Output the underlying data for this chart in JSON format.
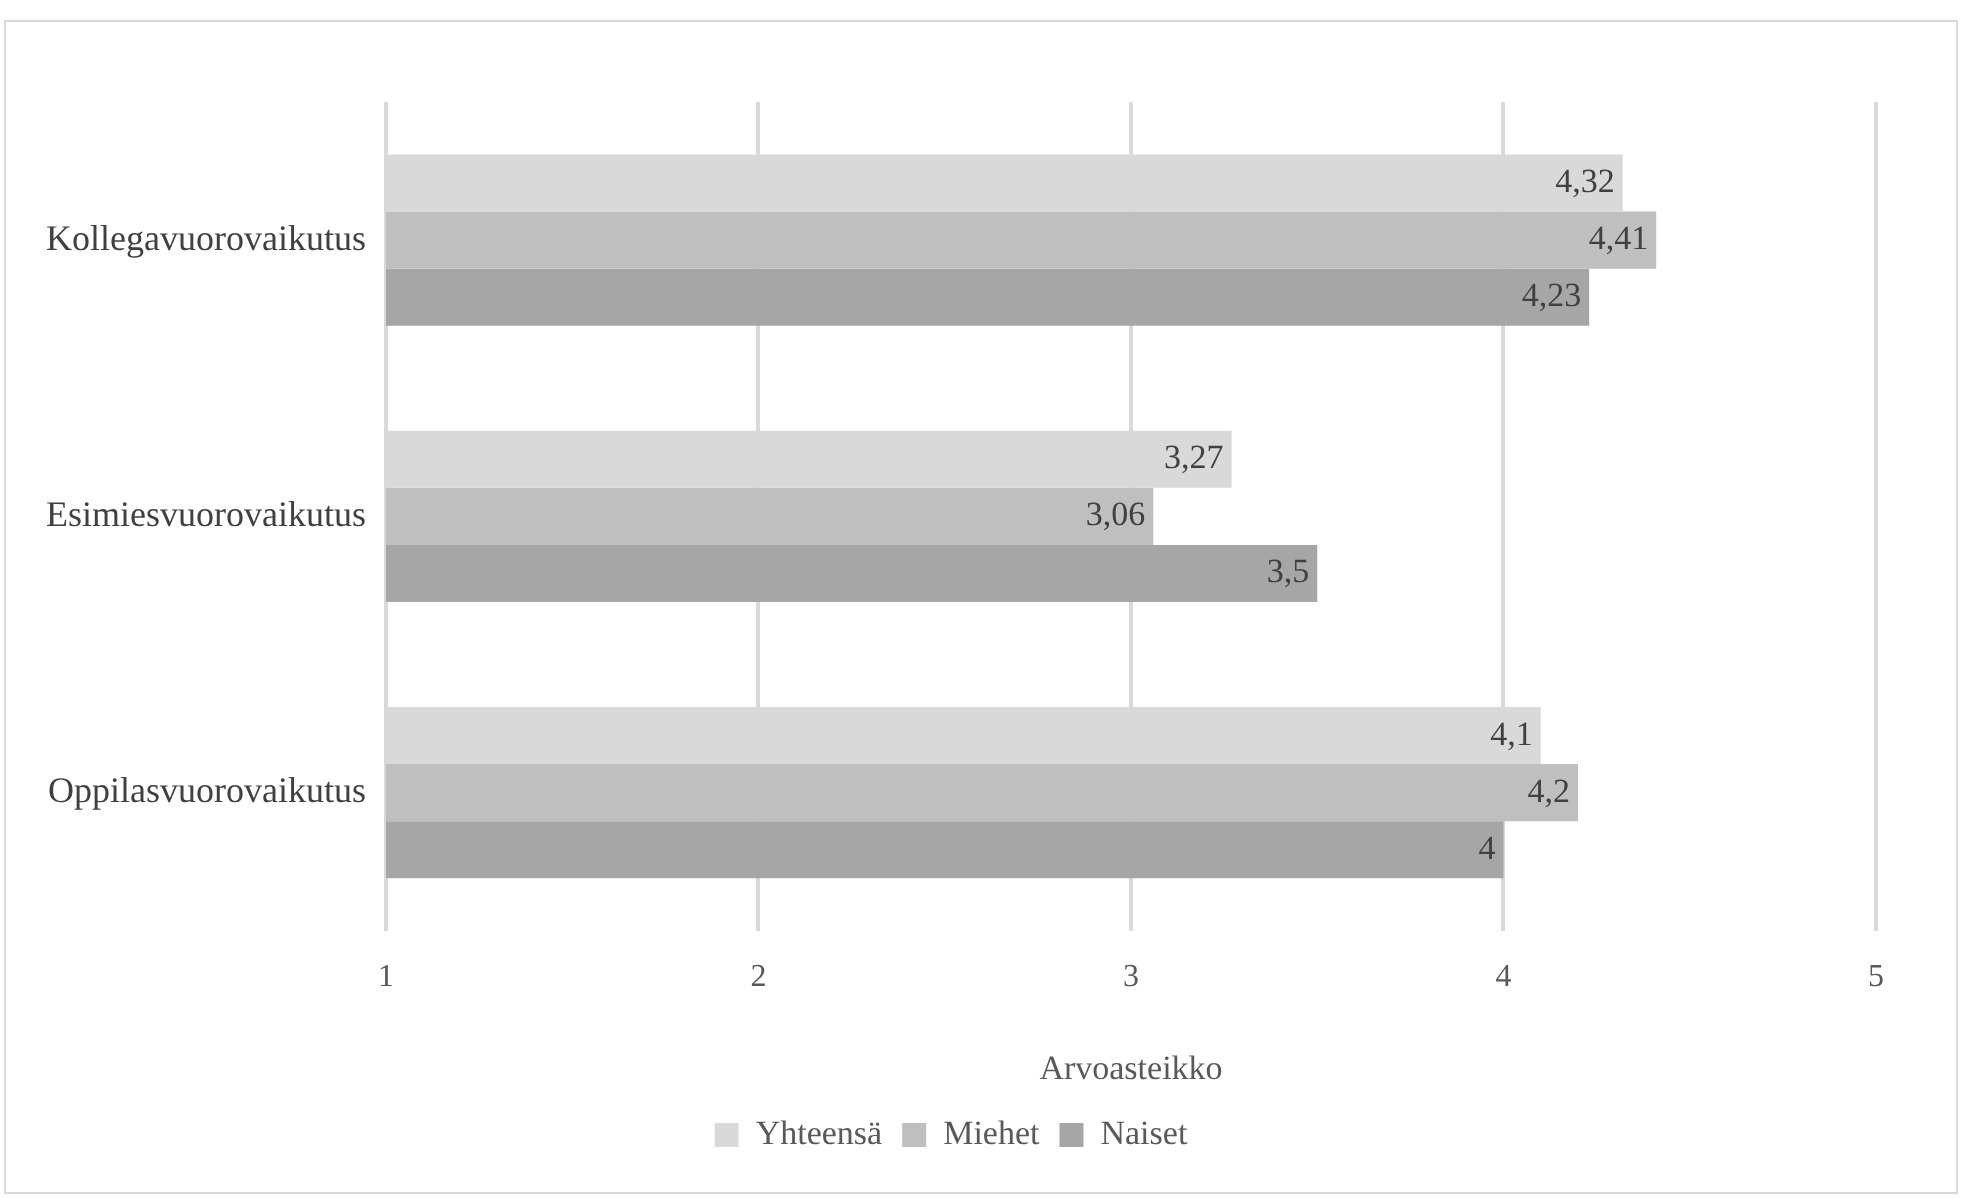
{
  "chart_data": {
    "type": "bar",
    "orientation": "horizontal",
    "xlabel": "Arvoasteikko",
    "categories": [
      "Kollegavuorovaikutus",
      "Esimiesvuorovaikutus",
      "Oppilasvuorovaikutus"
    ],
    "series": [
      {
        "name": "Yhteensä",
        "color": "#d9d9d9",
        "values": [
          4.32,
          3.27,
          4.1
        ],
        "value_labels": [
          "4,32",
          "3,27",
          "4,1"
        ]
      },
      {
        "name": "Miehet",
        "color": "#bfbfbf",
        "values": [
          4.41,
          3.06,
          4.2
        ],
        "value_labels": [
          "4,41",
          "3,06",
          "4,2"
        ]
      },
      {
        "name": "Naiset",
        "color": "#a6a6a6",
        "values": [
          4.23,
          3.5,
          4
        ],
        "value_labels": [
          "4,23",
          "3,5",
          "4"
        ]
      }
    ],
    "xlim": [
      1,
      5
    ],
    "xticks": [
      1,
      2,
      3,
      4,
      5
    ],
    "grid": "x",
    "legend": "bottom"
  }
}
